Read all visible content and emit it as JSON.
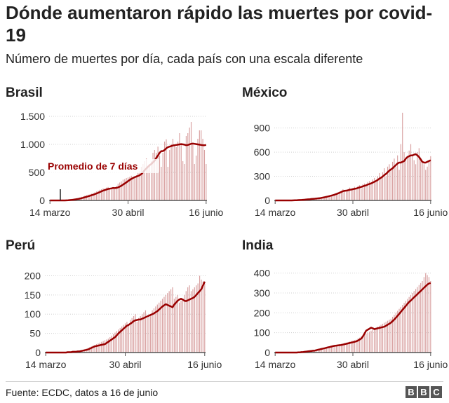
{
  "header": {
    "title": "Dónde aumentaron rápido las muertes por covid-19",
    "subtitle": "Número de muertes por día, cada país con una escala diferente"
  },
  "footer": {
    "source": "Fuente: ECDC, datos a 16 de junio",
    "logo": [
      "B",
      "B",
      "C"
    ]
  },
  "colors": {
    "bars": "#d9a2a2",
    "line": "#990000",
    "axis": "#555555",
    "grid": "#d0d0d0"
  },
  "chart_data": [
    {
      "type": "bar",
      "country": "Brasil",
      "x_tick_labels": [
        "14 marzo",
        "30 abril",
        "16 junio"
      ],
      "y_tick_labels": [
        "0",
        "500",
        "1.000",
        "1.500"
      ],
      "y_ticks": [
        0,
        500,
        1000,
        1500
      ],
      "ylim": [
        0,
        1550
      ],
      "annotation": "Promedio de 7 días",
      "daily_note": "dates 14 marzo to 16 junio (95 days); bars = daily deaths, line = 7-day average",
      "values": [
        0,
        0,
        0,
        0,
        0,
        0,
        0,
        0,
        0,
        0,
        5,
        10,
        15,
        20,
        25,
        30,
        40,
        45,
        55,
        65,
        75,
        85,
        95,
        105,
        110,
        120,
        130,
        145,
        160,
        175,
        190,
        200,
        215,
        210,
        230,
        240,
        210,
        220,
        240,
        200,
        260,
        300,
        320,
        340,
        370,
        380,
        400,
        410,
        420,
        440,
        420,
        430,
        450,
        500,
        520,
        600,
        650,
        700,
        750,
        600,
        650,
        700,
        850,
        900,
        850,
        960,
        800,
        600,
        850,
        1050,
        1090,
        600,
        900,
        1000,
        1100,
        1000,
        950,
        1050,
        1200,
        1000,
        700,
        650,
        1150,
        1200,
        1300,
        1400,
        1000,
        650,
        800,
        1100,
        1250,
        1250,
        1100,
        900,
        650
      ],
      "average": [
        0,
        0,
        0,
        0,
        0,
        0,
        0,
        0,
        0,
        0,
        1,
        3,
        6,
        9,
        13,
        17,
        22,
        28,
        33,
        40,
        47,
        56,
        65,
        74,
        83,
        92,
        101,
        112,
        124,
        136,
        149,
        162,
        175,
        185,
        195,
        205,
        210,
        215,
        222,
        220,
        224,
        233,
        246,
        263,
        283,
        302,
        323,
        345,
        365,
        385,
        400,
        415,
        425,
        437,
        450,
        470,
        500,
        540,
        570,
        600,
        630,
        650,
        680,
        710,
        760,
        800,
        850,
        880,
        880,
        900,
        930,
        950,
        960,
        970,
        980,
        985,
        990,
        995,
        1000,
        1005,
        1000,
        995,
        985,
        990,
        1000,
        1010,
        1015,
        1010,
        1005,
        1000,
        995,
        990,
        985,
        985,
        990
      ]
    },
    {
      "type": "bar",
      "country": "México",
      "x_tick_labels": [
        "14 marzo",
        "30 abril",
        "16 junio"
      ],
      "y_tick_labels": [
        "0",
        "300",
        "600",
        "900"
      ],
      "y_ticks": [
        0,
        300,
        600,
        900
      ],
      "ylim": [
        0,
        1080
      ],
      "values": [
        0,
        0,
        0,
        0,
        0,
        0,
        0,
        0,
        0,
        0,
        1,
        2,
        3,
        4,
        5,
        6,
        8,
        10,
        12,
        14,
        16,
        18,
        20,
        22,
        24,
        26,
        28,
        30,
        35,
        40,
        45,
        50,
        55,
        60,
        65,
        70,
        80,
        90,
        100,
        110,
        120,
        140,
        130,
        110,
        140,
        160,
        130,
        150,
        170,
        140,
        180,
        190,
        150,
        200,
        210,
        180,
        230,
        240,
        200,
        260,
        280,
        230,
        300,
        340,
        280,
        350,
        400,
        300,
        420,
        450,
        380,
        480,
        520,
        420,
        560,
        380,
        700,
        1090,
        600,
        500,
        550,
        620,
        700,
        560,
        500,
        450,
        600,
        650,
        500,
        480,
        450,
        380,
        420,
        500,
        550
      ],
      "average": [
        0,
        0,
        0,
        0,
        0,
        0,
        0,
        0,
        0,
        0,
        0,
        1,
        2,
        3,
        4,
        5,
        6,
        8,
        10,
        12,
        14,
        16,
        18,
        20,
        22,
        24,
        26,
        28,
        32,
        36,
        40,
        45,
        50,
        55,
        60,
        65,
        72,
        80,
        88,
        96,
        105,
        115,
        120,
        122,
        125,
        132,
        135,
        140,
        145,
        148,
        155,
        162,
        168,
        175,
        182,
        188,
        198,
        205,
        212,
        222,
        232,
        242,
        255,
        270,
        282,
        298,
        315,
        330,
        350,
        370,
        385,
        400,
        420,
        440,
        460,
        470,
        470,
        480,
        490,
        520,
        540,
        550,
        560,
        560,
        570,
        575,
        560,
        540,
        510,
        480,
        470,
        470,
        480,
        490,
        500
      ]
    },
    {
      "type": "bar",
      "country": "Perú",
      "x_tick_labels": [
        "14 marzo",
        "30 abril",
        "16 junio"
      ],
      "y_tick_labels": [
        "0",
        "50",
        "100",
        "150",
        "200"
      ],
      "y_ticks": [
        0,
        50,
        100,
        150,
        200
      ],
      "ylim": [
        0,
        210
      ],
      "values": [
        0,
        0,
        0,
        0,
        0,
        0,
        0,
        0,
        0,
        0,
        0,
        0,
        1,
        1,
        2,
        2,
        3,
        3,
        4,
        4,
        5,
        6,
        7,
        8,
        10,
        12,
        14,
        16,
        18,
        20,
        22,
        24,
        26,
        28,
        30,
        32,
        34,
        36,
        40,
        44,
        48,
        52,
        56,
        60,
        64,
        68,
        72,
        76,
        80,
        70,
        85,
        90,
        95,
        100,
        80,
        90,
        95,
        100,
        105,
        110,
        90,
        95,
        100,
        110,
        115,
        120,
        125,
        130,
        135,
        140,
        145,
        150,
        155,
        160,
        165,
        170,
        140,
        145,
        150,
        130,
        135,
        140,
        150,
        160,
        170,
        175,
        160,
        165,
        170,
        175,
        180,
        200,
        190,
        185,
        180
      ],
      "average": [
        0,
        0,
        0,
        0,
        0,
        0,
        0,
        0,
        0,
        0,
        0,
        0,
        0,
        1,
        1,
        1,
        2,
        2,
        2,
        3,
        3,
        4,
        5,
        6,
        7,
        8,
        10,
        12,
        14,
        16,
        17,
        18,
        19,
        20,
        21,
        22,
        25,
        28,
        31,
        34,
        37,
        40,
        45,
        50,
        54,
        58,
        62,
        66,
        70,
        72,
        75,
        78,
        82,
        84,
        85,
        86,
        86,
        88,
        90,
        92,
        94,
        96,
        98,
        100,
        102,
        105,
        108,
        112,
        116,
        120,
        123,
        126,
        124,
        122,
        120,
        118,
        125,
        130,
        135,
        138,
        140,
        138,
        135,
        134,
        136,
        138,
        140,
        142,
        145,
        150,
        155,
        160,
        165,
        175,
        185
      ]
    },
    {
      "type": "bar",
      "country": "India",
      "x_tick_labels": [
        "14 marzo",
        "30 abril",
        "16 junio"
      ],
      "y_tick_labels": [
        "0",
        "100",
        "200",
        "300",
        "400"
      ],
      "y_ticks": [
        0,
        100,
        200,
        300,
        400
      ],
      "ylim": [
        0,
        420
      ],
      "values": [
        0,
        0,
        0,
        0,
        0,
        0,
        0,
        0,
        0,
        0,
        0,
        0,
        1,
        1,
        2,
        2,
        3,
        4,
        5,
        6,
        7,
        8,
        9,
        10,
        12,
        14,
        16,
        18,
        20,
        22,
        24,
        26,
        28,
        30,
        32,
        34,
        36,
        38,
        40,
        42,
        44,
        46,
        48,
        50,
        52,
        55,
        58,
        60,
        62,
        65,
        70,
        75,
        80,
        85,
        90,
        95,
        100,
        105,
        110,
        115,
        120,
        125,
        130,
        135,
        140,
        145,
        150,
        155,
        160,
        165,
        170,
        180,
        190,
        200,
        210,
        220,
        230,
        240,
        250,
        260,
        270,
        280,
        290,
        300,
        310,
        320,
        330,
        340,
        350,
        360,
        380,
        400,
        390,
        380,
        360
      ],
      "average": [
        0,
        0,
        0,
        0,
        0,
        0,
        0,
        0,
        0,
        0,
        0,
        0,
        0,
        0,
        1,
        1,
        2,
        3,
        4,
        5,
        6,
        7,
        8,
        9,
        10,
        12,
        14,
        16,
        18,
        20,
        22,
        24,
        26,
        28,
        30,
        32,
        34,
        35,
        36,
        37,
        38,
        40,
        42,
        44,
        46,
        48,
        50,
        52,
        54,
        56,
        60,
        65,
        70,
        80,
        95,
        110,
        115,
        120,
        125,
        122,
        118,
        120,
        122,
        124,
        126,
        128,
        130,
        135,
        140,
        145,
        150,
        158,
        166,
        175,
        185,
        195,
        205,
        215,
        225,
        235,
        245,
        255,
        262,
        270,
        278,
        286,
        294,
        302,
        310,
        318,
        326,
        334,
        342,
        348,
        350
      ]
    }
  ]
}
